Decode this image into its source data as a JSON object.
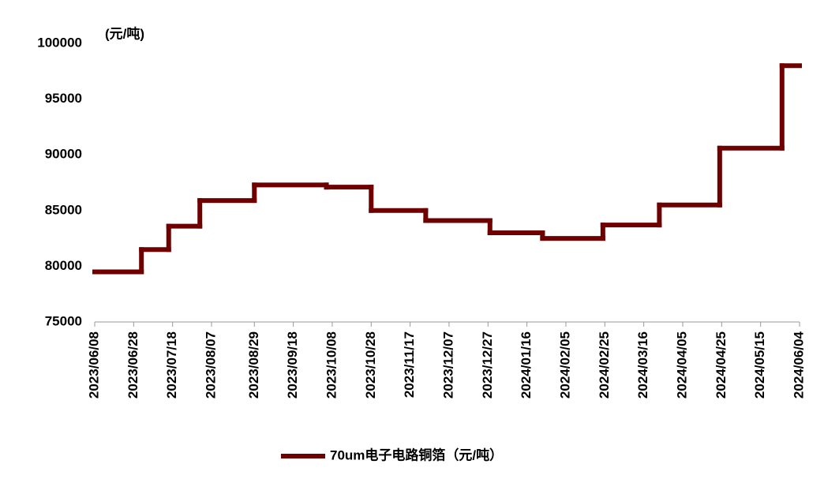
{
  "chart_data": {
    "type": "line",
    "step": true,
    "y_label": "(元/吨)",
    "x": [
      "2023/06/08",
      "2023/07/02",
      "2023/07/16",
      "2023/08/01",
      "2023/08/29",
      "2023/10/05",
      "2023/10/28",
      "2023/11/25",
      "2023/12/28",
      "2024/01/24",
      "2024/02/24",
      "2024/03/24",
      "2024/04/24",
      "2024/05/26"
    ],
    "series": [
      {
        "name": "70um电子电路铜箔（元/吨）",
        "color": "#6e0000",
        "values": [
          79500,
          81500,
          83600,
          85900,
          87300,
          87100,
          85000,
          84100,
          83000,
          82500,
          83700,
          85500,
          90600,
          98000
        ]
      }
    ],
    "xlim": [
      "2023/06/08",
      "2024/06/04"
    ],
    "xticks": [
      "2023/06/08",
      "2023/06/28",
      "2023/07/18",
      "2023/08/07",
      "2023/08/29",
      "2023/09/18",
      "2023/10/08",
      "2023/10/28",
      "2023/11/17",
      "2023/12/07",
      "2023/12/27",
      "2024/01/16",
      "2024/02/05",
      "2024/02/25",
      "2024/03/16",
      "2024/04/05",
      "2024/04/25",
      "2024/05/15",
      "2024/06/04"
    ],
    "ylim": [
      75000,
      100000
    ],
    "yticks": [
      75000,
      80000,
      85000,
      90000,
      95000,
      100000
    ],
    "grid": false,
    "legend": "bottom"
  }
}
